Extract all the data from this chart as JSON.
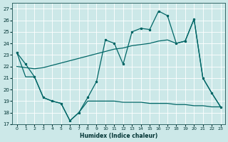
{
  "xlabel": "Humidex (Indice chaleur)",
  "bg_color": "#cce8e8",
  "grid_color": "#aadddd",
  "line_color": "#006666",
  "xlim": [
    -0.5,
    23.5
  ],
  "ylim": [
    17,
    27.5
  ],
  "yticks": [
    17,
    18,
    19,
    20,
    21,
    22,
    23,
    24,
    25,
    26,
    27
  ],
  "xticks": [
    0,
    1,
    2,
    3,
    4,
    5,
    6,
    7,
    8,
    9,
    10,
    11,
    12,
    13,
    14,
    15,
    16,
    17,
    18,
    19,
    20,
    21,
    22,
    23
  ],
  "line_zigzag_x": [
    0,
    1,
    2,
    3,
    4,
    5,
    6,
    7,
    8,
    9,
    10,
    11,
    12,
    13,
    14,
    15,
    16,
    17,
    18,
    19,
    20,
    21,
    22,
    23
  ],
  "line_zigzag_y": [
    23.2,
    22.2,
    21.1,
    19.3,
    19.0,
    18.8,
    17.3,
    18.0,
    19.3,
    20.7,
    24.3,
    24.0,
    22.2,
    25.0,
    25.3,
    25.2,
    26.8,
    26.4,
    24.0,
    24.2,
    26.1,
    21.0,
    19.7,
    18.5
  ],
  "line_diag_x": [
    0,
    1,
    2,
    3,
    4,
    5,
    6,
    7,
    8,
    9,
    10,
    11,
    12,
    13,
    14,
    15,
    16,
    17,
    18,
    19,
    20,
    21,
    22,
    23
  ],
  "line_diag_y": [
    22.0,
    21.9,
    21.8,
    21.9,
    22.1,
    22.3,
    22.5,
    22.7,
    22.9,
    23.1,
    23.3,
    23.5,
    23.6,
    23.8,
    23.9,
    24.0,
    24.2,
    24.3,
    24.0,
    24.2,
    26.1,
    21.0,
    19.7,
    18.5
  ],
  "line_low_x": [
    0,
    1,
    2,
    3,
    4,
    5,
    6,
    7,
    8,
    9,
    10,
    11,
    12,
    13,
    14,
    15,
    16,
    17,
    18,
    19,
    20,
    21,
    22,
    23
  ],
  "line_low_y": [
    23.2,
    21.1,
    21.1,
    19.3,
    19.0,
    18.8,
    17.3,
    18.0,
    19.0,
    19.0,
    19.0,
    19.0,
    18.9,
    18.9,
    18.9,
    18.8,
    18.8,
    18.8,
    18.7,
    18.7,
    18.6,
    18.6,
    18.5,
    18.5
  ]
}
